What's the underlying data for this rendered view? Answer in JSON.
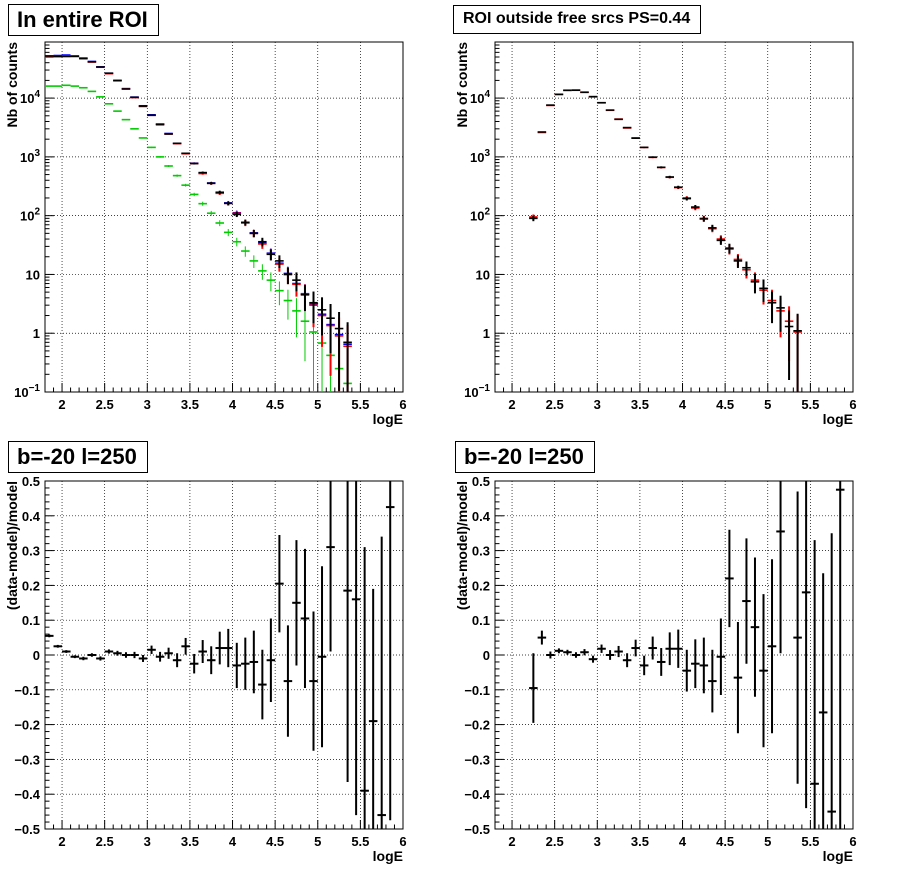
{
  "chart_data": [
    {
      "id": "p1",
      "type": "scatter",
      "title": "In entire ROI",
      "xlabel": "logE",
      "ylabel": "Nb of counts",
      "xlim": [
        1.8,
        6.0
      ],
      "ylim": [
        0.1,
        90000
      ],
      "yscale": "log",
      "grid": true,
      "xticks": [
        "2",
        "2.5",
        "3",
        "3.5",
        "4",
        "4.5",
        "5",
        "5.5",
        "6"
      ],
      "yticks": [
        {
          "v": 0.1,
          "label": "10",
          "sup": "−1"
        },
        {
          "v": 1,
          "label": "1",
          "sup": ""
        },
        {
          "v": 10,
          "label": "10",
          "sup": ""
        },
        {
          "v": 100,
          "label": "10",
          "sup": "2"
        },
        {
          "v": 1000,
          "label": "10",
          "sup": "3"
        },
        {
          "v": 10000,
          "label": "10",
          "sup": "4"
        }
      ],
      "series": [
        {
          "color": "#00cc00",
          "y": [
            16000,
            16000,
            16500,
            16000,
            15000,
            13000,
            10500,
            8000,
            6000,
            4300,
            3000,
            2100,
            1450,
            1000,
            700,
            480,
            330,
            230,
            160,
            110,
            75,
            52,
            36,
            25,
            17,
            11.5,
            8,
            5.3,
            3.6,
            2.4,
            1.6,
            1.05,
            0.68,
            0.42,
            0.25,
            0.14
          ]
        },
        {
          "color": "#0000ff",
          "y": [
            52000,
            53000,
            54000,
            52000,
            48000,
            42000,
            34000,
            26500,
            20000,
            14500,
            10400,
            7400,
            5200,
            3600,
            2500,
            1700,
            1150,
            780,
            530,
            360,
            245,
            165,
            112,
            76,
            51,
            34,
            23,
            15.5,
            10.4,
            7,
            4.7,
            3.1,
            2.1,
            1.4,
            0.95,
            0.65
          ]
        },
        {
          "color": "#ff0000",
          "y": [
            50000,
            51000,
            52000,
            51000,
            47000,
            41000,
            33500,
            26000,
            19700,
            14300,
            10200,
            7200,
            5100,
            3500,
            2450,
            1680,
            1130,
            770,
            520,
            355,
            240,
            162,
            110,
            75,
            50,
            33,
            22.5,
            15,
            10,
            6.8,
            4.6,
            3.0,
            2.0,
            1.35,
            0.9,
            0.6
          ],
          "err": true
        },
        {
          "color": "#000000",
          "y": [
            52000,
            51000,
            51000,
            51500,
            47000,
            41500,
            33800,
            26500,
            19900,
            14300,
            10300,
            7300,
            5100,
            3600,
            2450,
            1700,
            1150,
            770,
            540,
            355,
            250,
            162,
            105,
            77,
            50,
            36,
            22,
            17,
            10,
            8,
            4.5,
            3.3,
            2.5,
            1.8,
            1.2,
            0.7
          ],
          "err": true
        }
      ],
      "x_bin_start": 1.8,
      "x_bin_width": 0.1
    },
    {
      "id": "p2",
      "type": "scatter",
      "title": "ROI outside free srcs PS=0.44",
      "xlabel": "logE",
      "ylabel": "Nb of counts",
      "xlim": [
        1.8,
        6.0
      ],
      "ylim": [
        0.1,
        90000
      ],
      "yscale": "log",
      "grid": true,
      "xticks": [
        "2",
        "2.5",
        "3",
        "3.5",
        "4",
        "4.5",
        "5",
        "5.5",
        "6"
      ],
      "yticks": [
        {
          "v": 0.1,
          "label": "10",
          "sup": "−1"
        },
        {
          "v": 1,
          "label": "1",
          "sup": ""
        },
        {
          "v": 10,
          "label": "10",
          "sup": ""
        },
        {
          "v": 100,
          "label": "10",
          "sup": "2"
        },
        {
          "v": 1000,
          "label": "10",
          "sup": "3"
        },
        {
          "v": 10000,
          "label": "10",
          "sup": "4"
        }
      ],
      "series": [
        {
          "color": "#ff0000",
          "y": [
            null,
            null,
            null,
            null,
            95,
            2600,
            7500,
            11500,
            13500,
            13700,
            12500,
            10500,
            8300,
            6200,
            4400,
            3100,
            2100,
            1450,
            980,
            660,
            450,
            300,
            200,
            135,
            90,
            60,
            40,
            27,
            18,
            12,
            8,
            5.4,
            3.6,
            2.4,
            1.6,
            1.05
          ],
          "err": true
        },
        {
          "color": "#000000",
          "y": [
            null,
            null,
            null,
            null,
            90,
            2650,
            7600,
            11600,
            13600,
            13600,
            12600,
            10600,
            8350,
            6250,
            4350,
            3150,
            2080,
            1450,
            990,
            665,
            455,
            305,
            195,
            140,
            88,
            62,
            38,
            28,
            17,
            13,
            7.5,
            5.8,
            3.3,
            2.7,
            1.3,
            1.1
          ],
          "err": true
        }
      ],
      "x_bin_start": 1.8,
      "x_bin_width": 0.1
    },
    {
      "id": "p3",
      "type": "scatter",
      "title": "b=-20 l=250",
      "xlabel": "logE",
      "ylabel": "(data-model)/model",
      "xlim": [
        1.8,
        6.0
      ],
      "ylim": [
        -0.5,
        0.5
      ],
      "yscale": "linear",
      "grid": true,
      "xticks": [
        "2",
        "2.5",
        "3",
        "3.5",
        "4",
        "4.5",
        "5",
        "5.5",
        "6"
      ],
      "yticks": [
        {
          "v": -0.5,
          "label": "−0.5"
        },
        {
          "v": -0.4,
          "label": "−0.4"
        },
        {
          "v": -0.3,
          "label": "−0.3"
        },
        {
          "v": -0.2,
          "label": "−0.2"
        },
        {
          "v": -0.1,
          "label": "−0.1"
        },
        {
          "v": 0,
          "label": "0"
        },
        {
          "v": 0.1,
          "label": "0.1"
        },
        {
          "v": 0.2,
          "label": "0.2"
        },
        {
          "v": 0.3,
          "label": "0.3"
        },
        {
          "v": 0.4,
          "label": "0.4"
        },
        {
          "v": 0.5,
          "label": "0.5"
        }
      ],
      "points": [
        {
          "x": 1.85,
          "y": 0.055,
          "e": 0.004
        },
        {
          "x": 1.95,
          "y": 0.025,
          "e": 0.004
        },
        {
          "x": 2.05,
          "y": 0.01,
          "e": 0.004
        },
        {
          "x": 2.15,
          "y": -0.005,
          "e": 0.004
        },
        {
          "x": 2.25,
          "y": -0.01,
          "e": 0.005
        },
        {
          "x": 2.35,
          "y": 0.0,
          "e": 0.005
        },
        {
          "x": 2.45,
          "y": -0.01,
          "e": 0.006
        },
        {
          "x": 2.55,
          "y": 0.01,
          "e": 0.006
        },
        {
          "x": 2.65,
          "y": 0.005,
          "e": 0.007
        },
        {
          "x": 2.75,
          "y": 0.0,
          "e": 0.008
        },
        {
          "x": 2.85,
          "y": 0.0,
          "e": 0.009
        },
        {
          "x": 2.95,
          "y": -0.01,
          "e": 0.01
        },
        {
          "x": 3.05,
          "y": 0.015,
          "e": 0.012
        },
        {
          "x": 3.15,
          "y": -0.005,
          "e": 0.014
        },
        {
          "x": 3.25,
          "y": 0.005,
          "e": 0.016
        },
        {
          "x": 3.35,
          "y": -0.015,
          "e": 0.02
        },
        {
          "x": 3.45,
          "y": 0.025,
          "e": 0.024
        },
        {
          "x": 3.55,
          "y": -0.025,
          "e": 0.028
        },
        {
          "x": 3.65,
          "y": 0.01,
          "e": 0.033
        },
        {
          "x": 3.75,
          "y": -0.015,
          "e": 0.04
        },
        {
          "x": 3.85,
          "y": 0.02,
          "e": 0.047
        },
        {
          "x": 3.95,
          "y": 0.02,
          "e": 0.055
        },
        {
          "x": 4.05,
          "y": -0.03,
          "e": 0.065
        },
        {
          "x": 4.15,
          "y": -0.025,
          "e": 0.075
        },
        {
          "x": 4.25,
          "y": -0.02,
          "e": 0.09
        },
        {
          "x": 4.35,
          "y": -0.085,
          "e": 0.1
        },
        {
          "x": 4.45,
          "y": -0.015,
          "e": 0.12
        },
        {
          "x": 4.55,
          "y": 0.205,
          "e": 0.14
        },
        {
          "x": 4.65,
          "y": -0.075,
          "e": 0.16
        },
        {
          "x": 4.75,
          "y": 0.15,
          "e": 0.18
        },
        {
          "x": 4.85,
          "y": 0.105,
          "e": 0.2
        },
        {
          "x": 4.95,
          "y": -0.075,
          "e": 0.2
        },
        {
          "x": 5.05,
          "y": -0.005,
          "e": 0.26
        },
        {
          "x": 5.15,
          "y": 0.31,
          "e": 0.3
        },
        {
          "x": 5.25,
          "y": null,
          "e": 0
        },
        {
          "x": 5.35,
          "y": 0.185,
          "e": 0.55
        },
        {
          "x": 5.45,
          "y": 0.16,
          "e": 0.62
        },
        {
          "x": 5.55,
          "y": -0.39,
          "e": 0.7
        },
        {
          "x": 5.65,
          "y": -0.19,
          "e": 0.38
        },
        {
          "x": 5.75,
          "y": -0.46,
          "e": 0.8
        },
        {
          "x": 5.85,
          "y": 0.425,
          "e": 0.9
        }
      ]
    },
    {
      "id": "p4",
      "type": "scatter",
      "title": "b=-20 l=250",
      "xlabel": "logE",
      "ylabel": "(data-model)/model",
      "xlim": [
        1.8,
        6.0
      ],
      "ylim": [
        -0.5,
        0.5
      ],
      "yscale": "linear",
      "grid": true,
      "xticks": [
        "2",
        "2.5",
        "3",
        "3.5",
        "4",
        "4.5",
        "5",
        "5.5",
        "6"
      ],
      "yticks": [
        {
          "v": -0.5,
          "label": "−0.5"
        },
        {
          "v": -0.4,
          "label": "−0.4"
        },
        {
          "v": -0.3,
          "label": "−0.3"
        },
        {
          "v": -0.2,
          "label": "−0.2"
        },
        {
          "v": -0.1,
          "label": "−0.1"
        },
        {
          "v": 0,
          "label": "0"
        },
        {
          "v": 0.1,
          "label": "0.1"
        },
        {
          "v": 0.2,
          "label": "0.2"
        },
        {
          "v": 0.3,
          "label": "0.3"
        },
        {
          "v": 0.4,
          "label": "0.4"
        },
        {
          "v": 0.5,
          "label": "0.5"
        }
      ],
      "points": [
        {
          "x": 2.25,
          "y": -0.095,
          "e": 0.1
        },
        {
          "x": 2.35,
          "y": 0.05,
          "e": 0.02
        },
        {
          "x": 2.45,
          "y": 0.0,
          "e": 0.01
        },
        {
          "x": 2.55,
          "y": 0.012,
          "e": 0.007
        },
        {
          "x": 2.65,
          "y": 0.008,
          "e": 0.007
        },
        {
          "x": 2.75,
          "y": 0.0,
          "e": 0.008
        },
        {
          "x": 2.85,
          "y": 0.008,
          "e": 0.009
        },
        {
          "x": 2.95,
          "y": -0.012,
          "e": 0.01
        },
        {
          "x": 3.05,
          "y": 0.018,
          "e": 0.012
        },
        {
          "x": 3.15,
          "y": 0.0,
          "e": 0.014
        },
        {
          "x": 3.25,
          "y": 0.01,
          "e": 0.016
        },
        {
          "x": 3.35,
          "y": -0.015,
          "e": 0.02
        },
        {
          "x": 3.45,
          "y": 0.02,
          "e": 0.024
        },
        {
          "x": 3.55,
          "y": -0.03,
          "e": 0.028
        },
        {
          "x": 3.65,
          "y": 0.02,
          "e": 0.033
        },
        {
          "x": 3.75,
          "y": -0.02,
          "e": 0.04
        },
        {
          "x": 3.85,
          "y": 0.018,
          "e": 0.047
        },
        {
          "x": 3.95,
          "y": 0.018,
          "e": 0.055
        },
        {
          "x": 4.05,
          "y": -0.045,
          "e": 0.06
        },
        {
          "x": 4.15,
          "y": -0.025,
          "e": 0.07
        },
        {
          "x": 4.25,
          "y": -0.03,
          "e": 0.08
        },
        {
          "x": 4.35,
          "y": -0.075,
          "e": 0.09
        },
        {
          "x": 4.45,
          "y": -0.005,
          "e": 0.11
        },
        {
          "x": 4.55,
          "y": 0.22,
          "e": 0.14
        },
        {
          "x": 4.65,
          "y": -0.065,
          "e": 0.16
        },
        {
          "x": 4.75,
          "y": 0.155,
          "e": 0.18
        },
        {
          "x": 4.85,
          "y": 0.08,
          "e": 0.2
        },
        {
          "x": 4.95,
          "y": -0.045,
          "e": 0.22
        },
        {
          "x": 5.05,
          "y": 0.025,
          "e": 0.25
        },
        {
          "x": 5.15,
          "y": 0.355,
          "e": 0.35
        },
        {
          "x": 5.25,
          "y": null,
          "e": 0
        },
        {
          "x": 5.35,
          "y": 0.05,
          "e": 0.42
        },
        {
          "x": 5.45,
          "y": 0.18,
          "e": 0.62
        },
        {
          "x": 5.55,
          "y": -0.37,
          "e": 0.7
        },
        {
          "x": 5.65,
          "y": -0.165,
          "e": 0.4
        },
        {
          "x": 5.75,
          "y": -0.45,
          "e": 0.8
        },
        {
          "x": 5.85,
          "y": 0.475,
          "e": 1.0
        }
      ]
    }
  ]
}
